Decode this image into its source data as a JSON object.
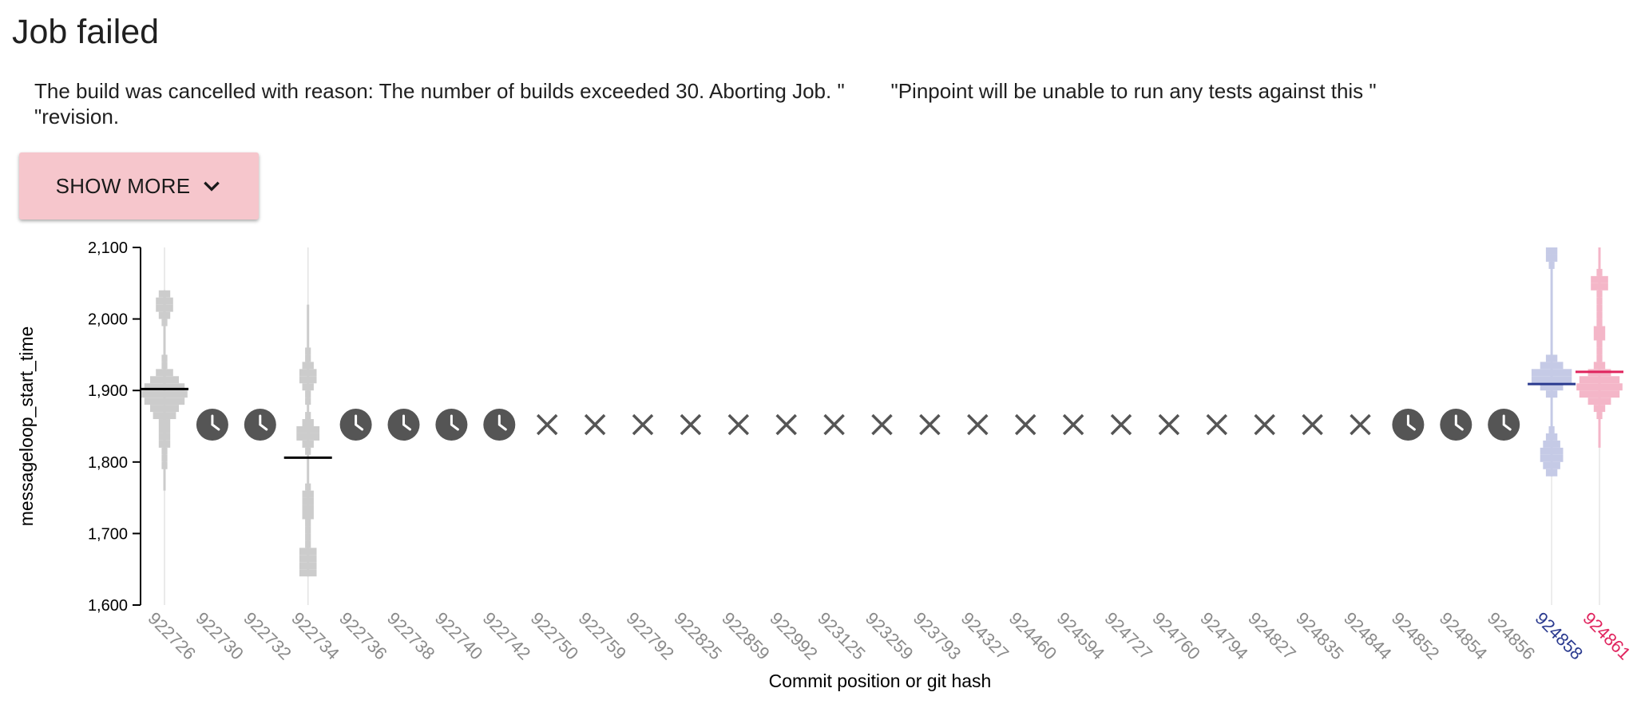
{
  "header": {
    "title": "Job failed"
  },
  "error": {
    "lines": [
      "The build was cancelled with reason: The number of builds exceeded 30. Aborting Job. \"        \"Pinpoint will be unable to run any tests against this \"",
      "\"revision."
    ]
  },
  "show_more": {
    "label": "SHOW MORE",
    "icon": "chevron-down-icon"
  },
  "colors": {
    "default": "#cccccc",
    "base": "#2a3a8f",
    "base_light": "#c5cae6",
    "head": "#e0245e",
    "head_light": "#f4b6c8",
    "icon": "#555555"
  },
  "chart_data": {
    "type": "violin",
    "xlabel": "Commit position or git hash",
    "ylabel": "messageloop_start_time",
    "ylim": [
      1600,
      2100
    ],
    "yticks": [
      1600,
      1700,
      1800,
      1900,
      2000,
      2100
    ],
    "ytick_labels": [
      "1,600",
      "1,700",
      "1,800",
      "1,900",
      "2,000",
      "2,100"
    ],
    "categories": [
      "922726",
      "922730",
      "922732",
      "922734",
      "922736",
      "922738",
      "922740",
      "922742",
      "922750",
      "922759",
      "922792",
      "922825",
      "922859",
      "922992",
      "923125",
      "923259",
      "923793",
      "924327",
      "924460",
      "924594",
      "924727",
      "924760",
      "924794",
      "924827",
      "924835",
      "924844",
      "924852",
      "924854",
      "924856",
      "924858",
      "924861"
    ],
    "status": [
      "data",
      "pending",
      "pending",
      "data",
      "pending",
      "pending",
      "pending",
      "pending",
      "failed",
      "failed",
      "failed",
      "failed",
      "failed",
      "failed",
      "failed",
      "failed",
      "failed",
      "failed",
      "failed",
      "failed",
      "failed",
      "failed",
      "failed",
      "failed",
      "failed",
      "failed",
      "pending",
      "pending",
      "pending",
      "data",
      "data"
    ],
    "highlight": {
      "924858": "base",
      "924861": "head"
    },
    "medians": {
      "922726": 1902,
      "922734": 1806,
      "924858": 1909,
      "924861": 1926
    },
    "ranges": {
      "922726": [
        1760,
        2040
      ],
      "922734": [
        1640,
        2020
      ],
      "924858": [
        1780,
        2100
      ],
      "924861": [
        1820,
        2100
      ]
    }
  }
}
